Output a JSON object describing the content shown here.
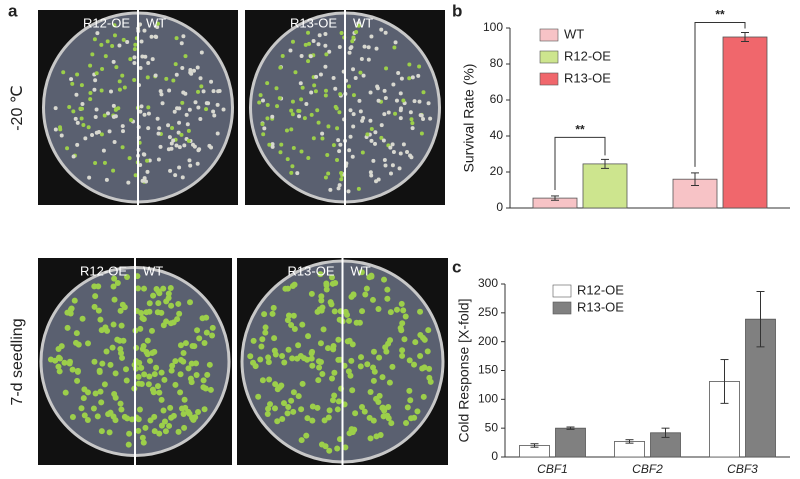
{
  "panels": {
    "a": {
      "label": "a",
      "row_labels": [
        "-20 ℃",
        "7-d seedling"
      ],
      "photos": [
        [
          "R12-OE",
          "WT"
        ],
        [
          "R13-OE",
          "WT"
        ],
        [
          "R12-OE",
          "WT"
        ],
        [
          "R13-OE",
          "WT"
        ]
      ]
    }
  },
  "chart_data": [
    {
      "type": "bar",
      "title": "b",
      "ylabel": "Survival Rate (%)",
      "categories": [
        null,
        null
      ],
      "series": [
        {
          "name": "WT",
          "color": "#f7c3c6",
          "values": [
            5.5,
            16
          ],
          "errors": [
            1.2,
            3.5
          ]
        },
        {
          "name": "R12-OE",
          "color": "#cde58e",
          "values": [
            24.5,
            null
          ],
          "errors": [
            2.5,
            null
          ]
        },
        {
          "name": "R13-OE",
          "color": "#f0676c",
          "values": [
            null,
            95
          ],
          "errors": [
            null,
            2.5
          ]
        }
      ],
      "annotations": [
        "**",
        "**"
      ],
      "ylim": [
        0,
        100
      ],
      "yticks": [
        0,
        20,
        40,
        60,
        80,
        100
      ]
    },
    {
      "type": "bar",
      "title": "c",
      "ylabel": "Cold Response [X-fold]",
      "categories": [
        "CBF1",
        "CBF2",
        "CBF3"
      ],
      "series": [
        {
          "name": "R12-OE",
          "color": "#ffffff",
          "values": [
            20,
            27,
            131
          ],
          "errors": [
            3,
            3,
            38
          ]
        },
        {
          "name": "R13-OE",
          "color": "#808080",
          "values": [
            50,
            42,
            239
          ],
          "errors": [
            2,
            8,
            48
          ]
        }
      ],
      "ylim": [
        0,
        300
      ],
      "yticks": [
        0,
        50,
        100,
        150,
        200,
        250,
        300
      ]
    }
  ]
}
